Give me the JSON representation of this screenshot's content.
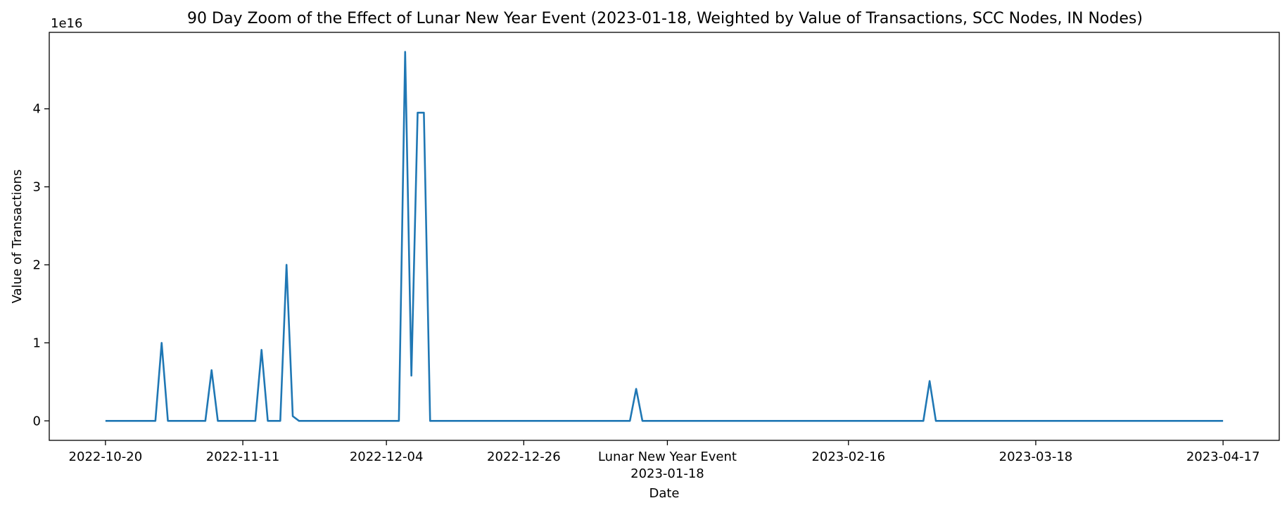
{
  "chart_data": {
    "type": "line",
    "title": "90 Day Zoom of the Effect of Lunar New Year Event (2023-01-18, Weighted by Value of Transactions, SCC Nodes, IN Nodes)",
    "xlabel": "Date",
    "ylabel": "Value of Transactions",
    "y_offset_label": "1e16",
    "y_scale": 1e+16,
    "x_start": "2022-10-20",
    "x_end": "2023-04-17",
    "xlim": [
      "2022-10-11",
      "2023-04-26"
    ],
    "ylim": [
      -0.25,
      4.98
    ],
    "y_ticks": [
      0,
      1,
      2,
      3,
      4
    ],
    "y_tick_labels": [
      "0",
      "1",
      "2",
      "3",
      "4"
    ],
    "x_ticks": [
      {
        "date": "2022-10-20",
        "label": "2022-10-20"
      },
      {
        "date": "2022-11-11",
        "label": "2022-11-11"
      },
      {
        "date": "2022-12-04",
        "label": "2022-12-04"
      },
      {
        "date": "2022-12-26",
        "label": "2022-12-26"
      },
      {
        "date": "2023-01-18",
        "label": "Lunar New Year Event",
        "label2": "2023-01-18"
      },
      {
        "date": "2023-02-16",
        "label": "2023-02-16"
      },
      {
        "date": "2023-03-18",
        "label": "2023-03-18"
      },
      {
        "date": "2023-04-17",
        "label": "2023-04-17"
      }
    ],
    "grid": false,
    "line_color": "#1f77b4",
    "series": [
      {
        "points": [
          {
            "date": "2022-10-20",
            "value": 0
          },
          {
            "date": "2022-10-28",
            "value": 0
          },
          {
            "date": "2022-10-29",
            "value": 1.0
          },
          {
            "date": "2022-10-30",
            "value": 0
          },
          {
            "date": "2022-11-05",
            "value": 0
          },
          {
            "date": "2022-11-06",
            "value": 0.65
          },
          {
            "date": "2022-11-07",
            "value": 0
          },
          {
            "date": "2022-11-13",
            "value": 0
          },
          {
            "date": "2022-11-14",
            "value": 0.91
          },
          {
            "date": "2022-11-15",
            "value": 0
          },
          {
            "date": "2022-11-17",
            "value": 0
          },
          {
            "date": "2022-11-18",
            "value": 2.0
          },
          {
            "date": "2022-11-19",
            "value": 0.06
          },
          {
            "date": "2022-11-20",
            "value": 0
          },
          {
            "date": "2022-12-06",
            "value": 0
          },
          {
            "date": "2022-12-07",
            "value": 4.73
          },
          {
            "date": "2022-12-08",
            "value": 0.58
          },
          {
            "date": "2022-12-09",
            "value": 3.95
          },
          {
            "date": "2022-12-10",
            "value": 3.95
          },
          {
            "date": "2022-12-11",
            "value": 0
          },
          {
            "date": "2023-01-12",
            "value": 0
          },
          {
            "date": "2023-01-13",
            "value": 0.41
          },
          {
            "date": "2023-01-14",
            "value": 0
          },
          {
            "date": "2023-02-28",
            "value": 0
          },
          {
            "date": "2023-03-01",
            "value": 0.51
          },
          {
            "date": "2023-03-02",
            "value": 0
          },
          {
            "date": "2023-04-17",
            "value": 0
          }
        ]
      }
    ]
  }
}
